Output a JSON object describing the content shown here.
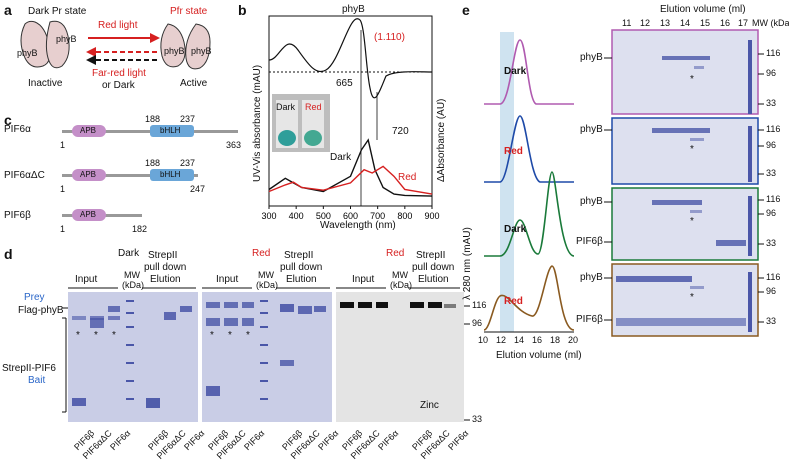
{
  "panels": {
    "a": {
      "letter": "a",
      "dark_state": "Dark Pr state",
      "red_light": "Red light",
      "pfr_state": "Pfr state",
      "far_red": "Far-red light",
      "or_dark": "or Dark",
      "inactive": "Inactive",
      "active": "Active",
      "phyb": "phyB"
    },
    "b": {
      "letter": "b",
      "title": "phyB",
      "ylabel_left": "UV-Vis absorbance (mAU)",
      "ylabel_right": "ΔAbsorbance (AU)",
      "xlabel": "Wavelength (nm)",
      "ratio": "(1.110)",
      "peak1": "665",
      "peak2": "720",
      "legend_dark": "Dark",
      "legend_red": "Red",
      "inset_dark": "Dark",
      "inset_red": "Red"
    },
    "c": {
      "letter": "c",
      "constructs": [
        {
          "name": "PIF6α",
          "apb": "APB",
          "bhlh": "bHLH",
          "start": "1",
          "m1": "188",
          "m2": "237",
          "end": "363"
        },
        {
          "name": "PIF6αΔC",
          "apb": "APB",
          "bhlh": "bHLH",
          "start": "1",
          "m1": "188",
          "m2": "237",
          "end": "247"
        },
        {
          "name": "PIF6β",
          "apb": "APB",
          "start": "1",
          "end": "182"
        }
      ]
    },
    "d": {
      "letter": "d",
      "prey": "Prey",
      "flag_phyb": "Flag-phyB",
      "bait1": "StrepII-PIF6",
      "bait2": "Bait",
      "dark": "Dark",
      "red": "Red",
      "input": "Input",
      "mw": "MW",
      "kda": "(kDa)",
      "strep1": "StrepII",
      "strep2": "pull down",
      "elution": "Elution",
      "zinc": "Zinc",
      "mw_markers": [
        "116",
        "96",
        "33"
      ],
      "lanes": [
        "PIF6β",
        "PIF6αΔC",
        "PIF6α",
        "PIF6β",
        "PIF6αΔC",
        "PIF6α"
      ],
      "star": "*"
    },
    "e": {
      "letter": "e",
      "ylabel": "λ 280 nm (mAU)",
      "xlabel": "Elution volume (ml)",
      "xticks": [
        "10",
        "12",
        "14",
        "16",
        "18",
        "20"
      ],
      "trace_labels": [
        "Dark",
        "Red",
        "Dark",
        "Red"
      ],
      "gel_header": "Elution volume (ml)",
      "gel_cols": [
        "11",
        "12",
        "13",
        "14",
        "15",
        "16",
        "17"
      ],
      "mw_header": "MW (kDa)",
      "phyb": "phyB",
      "pif6b": "PIF6β",
      "mw_markers": [
        "116",
        "96",
        "33"
      ],
      "star": "*"
    }
  },
  "chart_data": {
    "type": "line",
    "title": "phyB",
    "xlabel": "Wavelength (nm)",
    "ylabel": "UV-Vis absorbance (mAU)",
    "xlim": [
      300,
      900
    ],
    "xticks": [
      300,
      400,
      500,
      600,
      700,
      800,
      900
    ],
    "series": [
      {
        "name": "Dark",
        "x": [
          300,
          360,
          390,
          420,
          500,
          600,
          640,
          665,
          690,
          720,
          760,
          800,
          900
        ],
        "y": [
          0.25,
          0.42,
          0.35,
          0.28,
          0.22,
          0.45,
          0.85,
          1.0,
          0.55,
          0.28,
          0.18,
          0.16,
          0.15
        ]
      },
      {
        "name": "Red",
        "x": [
          300,
          360,
          390,
          420,
          500,
          600,
          650,
          680,
          720,
          760,
          800,
          900
        ],
        "y": [
          0.22,
          0.32,
          0.36,
          0.28,
          0.24,
          0.35,
          0.55,
          0.5,
          0.6,
          0.45,
          0.25,
          0.18
        ]
      }
    ],
    "annotations": [
      "665",
      "720",
      "(1.110)"
    ]
  },
  "colors": {
    "red": "#d62020",
    "blue": "#2a66c8",
    "pink_trace": "#b05bb0",
    "blue_trace": "#1e4aa8",
    "green_trace": "#1a7a3a",
    "brown_trace": "#8a5a20",
    "highlight": "#cfe3f0"
  }
}
